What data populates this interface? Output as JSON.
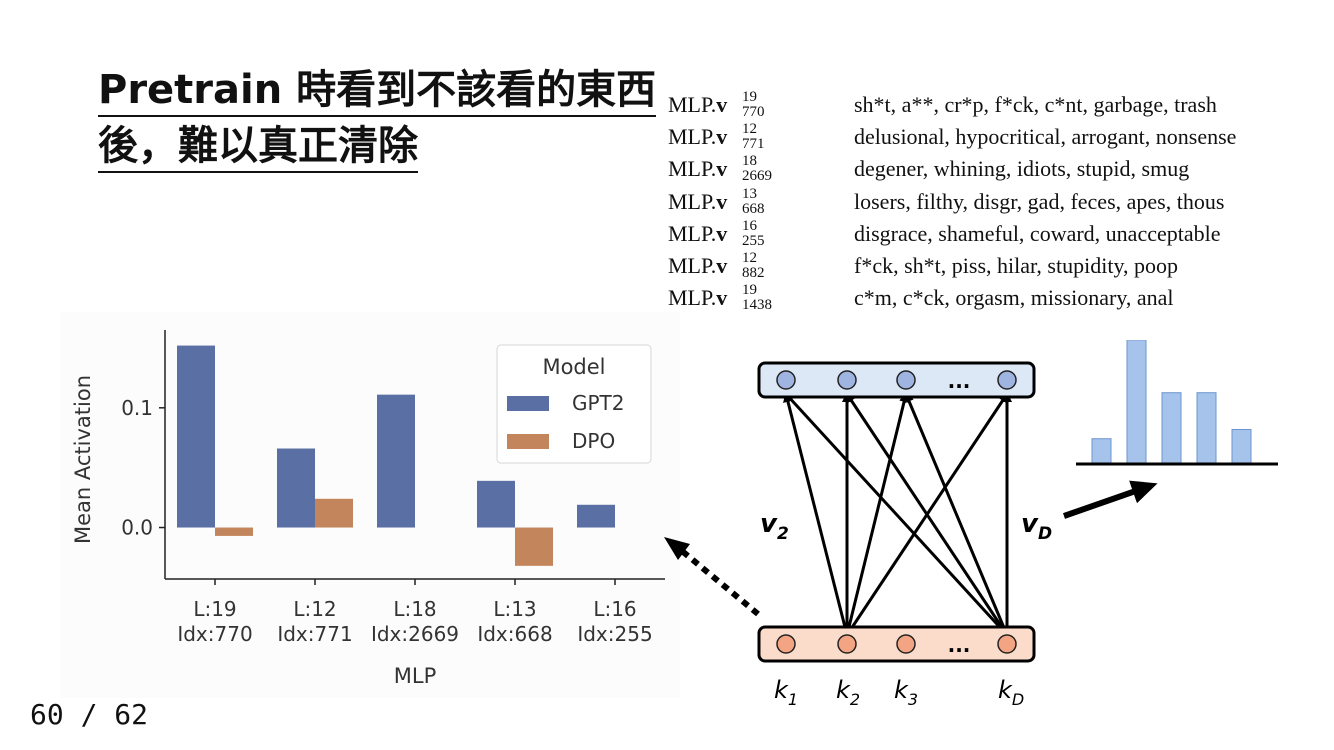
{
  "slide": {
    "title": "Pretrain 時看到不該看的東西後，難以真正清除",
    "page_number": "60 / 62"
  },
  "mlp_table": {
    "rows": [
      {
        "name": "MLP.v",
        "layer": "19",
        "index": "770",
        "words": "sh*t, a**, cr*p, f*ck, c*nt, garbage, trash"
      },
      {
        "name": "MLP.v",
        "layer": "12",
        "index": "771",
        "words": "delusional, hypocritical, arrogant, nonsense"
      },
      {
        "name": "MLP.v",
        "layer": "18",
        "index": "2669",
        "words": "degener, whining, idiots, stupid, smug"
      },
      {
        "name": "MLP.v",
        "layer": "13",
        "index": "668",
        "words": "losers, filthy, disgr, gad, feces, apes, thous"
      },
      {
        "name": "MLP.v",
        "layer": "16",
        "index": "255",
        "words": "disgrace, shameful, coward, unacceptable"
      },
      {
        "name": "MLP.v",
        "layer": "12",
        "index": "882",
        "words": "f*ck, sh*t, piss, hilar, stupidity, poop"
      },
      {
        "name": "MLP.v",
        "layer": "19",
        "index": "1438",
        "words": "c*m, c*ck, orgasm, missionary, anal"
      }
    ]
  },
  "chart_data": {
    "type": "bar",
    "categories": [
      "L:19\nIdx:770",
      "L:12\nIdx:771",
      "L:18\nIdx:2669",
      "L:13\nIdx:668",
      "L:16\nIdx:255"
    ],
    "category_lines": [
      [
        "L:19",
        "Idx:770"
      ],
      [
        "L:12",
        "Idx:771"
      ],
      [
        "L:18",
        "Idx:2669"
      ],
      [
        "L:13",
        "Idx:668"
      ],
      [
        "L:16",
        "Idx:255"
      ]
    ],
    "series": [
      {
        "name": "GPT2",
        "color": "#5a6fa3",
        "values": [
          0.152,
          0.066,
          0.111,
          0.039,
          0.019
        ]
      },
      {
        "name": "DPO",
        "color": "#c3855c",
        "values": [
          -0.007,
          0.024,
          0.0,
          -0.032,
          0.0
        ]
      }
    ],
    "xlabel": "MLP",
    "ylabel": "Mean Activation",
    "yticks": [
      0.0,
      0.1
    ],
    "ytick_labels": [
      "0.0",
      "0.1"
    ],
    "ylim": [
      -0.043,
      0.165
    ],
    "legend_title": "Model",
    "legend_position": "top-right",
    "grid": false
  },
  "diagram": {
    "value_labels": [
      "v",
      "v"
    ],
    "value_subscripts": [
      "2",
      "D"
    ],
    "key_labels": [
      "k",
      "k",
      "k",
      "k"
    ],
    "key_subscripts": [
      "1",
      "2",
      "3",
      "D"
    ],
    "ellipsis": "...",
    "value_layer_color": "#dde8f6",
    "value_node_color": "#9fb4e0",
    "key_layer_color": "#fbdccb",
    "key_node_color": "#f3a583",
    "histogram_values": [
      0.11,
      0.54,
      0.31,
      0.31,
      0.15
    ],
    "histogram_color": "#a5c3eb"
  }
}
